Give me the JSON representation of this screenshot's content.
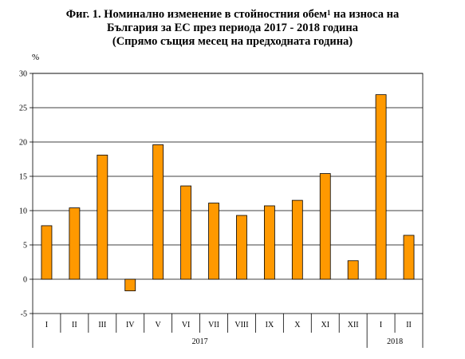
{
  "title": {
    "line1_pre": "Фиг. 1. Номинално изменение в стойностния обем",
    "sup": "1",
    "line1_post": " на износа на",
    "line2": "България за ЕС през периода 2017 - 2018 година",
    "line3": "(Спрямо същия месец на предходната година)"
  },
  "chart_data": {
    "type": "bar",
    "ylabel": "%",
    "xlabel": "",
    "ylim": [
      -5,
      30
    ],
    "yticks": [
      -5,
      0,
      5,
      10,
      15,
      20,
      25,
      30
    ],
    "grid": true,
    "bar_color": "#FF9900",
    "categories": [
      "I",
      "II",
      "III",
      "IV",
      "V",
      "VI",
      "VII",
      "VIII",
      "IX",
      "X",
      "XI",
      "XII",
      "I",
      "II"
    ],
    "values": [
      7.8,
      10.4,
      18.1,
      -1.7,
      19.6,
      13.6,
      11.1,
      9.3,
      10.7,
      11.5,
      15.4,
      2.7,
      26.9,
      6.4
    ],
    "groups": [
      {
        "label": "2017",
        "count": 12
      },
      {
        "label": "2018",
        "count": 2
      }
    ]
  }
}
